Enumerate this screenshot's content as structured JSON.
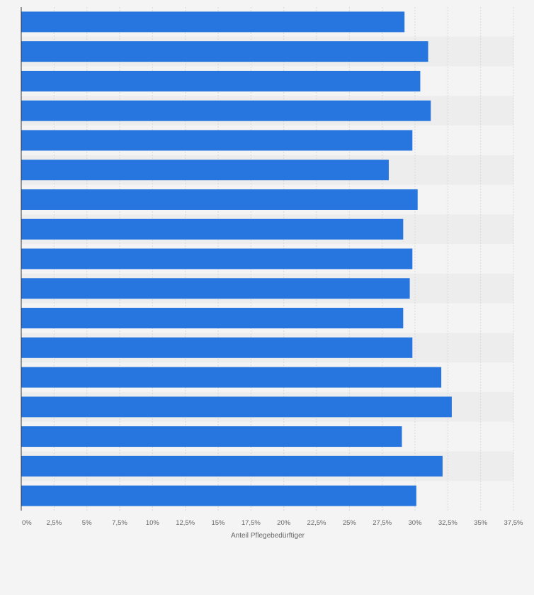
{
  "chart_data": {
    "type": "bar",
    "orientation": "horizontal",
    "categories": [
      "",
      "",
      "",
      "",
      "",
      "",
      "",
      "",
      "",
      "",
      "",
      "",
      "",
      "",
      "",
      "",
      ""
    ],
    "values": [
      29.2,
      31.0,
      30.4,
      31.2,
      29.8,
      28.0,
      30.2,
      29.1,
      29.8,
      29.6,
      29.1,
      29.8,
      32.0,
      32.8,
      29.0,
      32.1,
      30.1
    ],
    "xlabel": "Anteil Pflegebedürftiger",
    "xlim": [
      0,
      37.5
    ],
    "x_ticks": [
      "0%",
      "2,5%",
      "5%",
      "7,5%",
      "10%",
      "12,5%",
      "15%",
      "17,5%",
      "20%",
      "22,5%",
      "25%",
      "27,5%",
      "30%",
      "32,5%",
      "35%",
      "37,5%"
    ],
    "bar_color": "#2775de",
    "grid": true,
    "legend": "none"
  }
}
